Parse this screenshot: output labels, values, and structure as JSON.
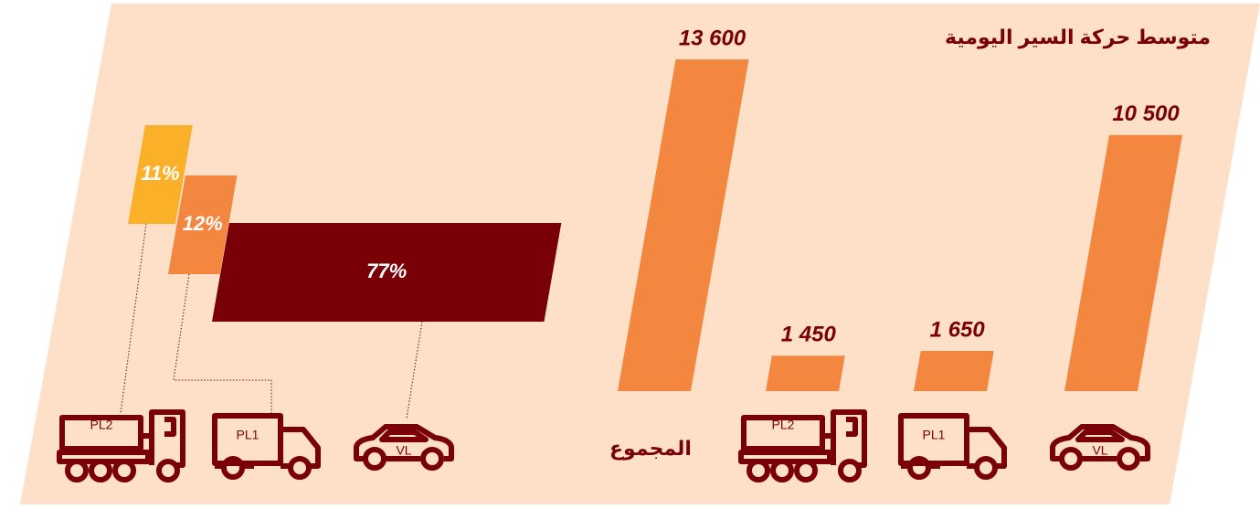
{
  "chart_data": [
    {
      "type": "bar",
      "title": "متوسط حركة السير اليومية",
      "categories": [
        "VL",
        "PL1",
        "PL2",
        "المجموع"
      ],
      "values": [
        10500,
        1650,
        1450,
        13600
      ],
      "value_labels": [
        "10 500",
        "1 650",
        "1 450",
        "13 600"
      ],
      "color": "#f4873f"
    },
    {
      "type": "share",
      "categories": [
        "VL",
        "PL1",
        "PL2"
      ],
      "values": [
        77,
        12,
        11
      ],
      "value_labels": [
        "77%",
        "12%",
        "11%"
      ],
      "colors": [
        "#7a0008",
        "#f4873f",
        "#fbb02a"
      ]
    }
  ]
}
